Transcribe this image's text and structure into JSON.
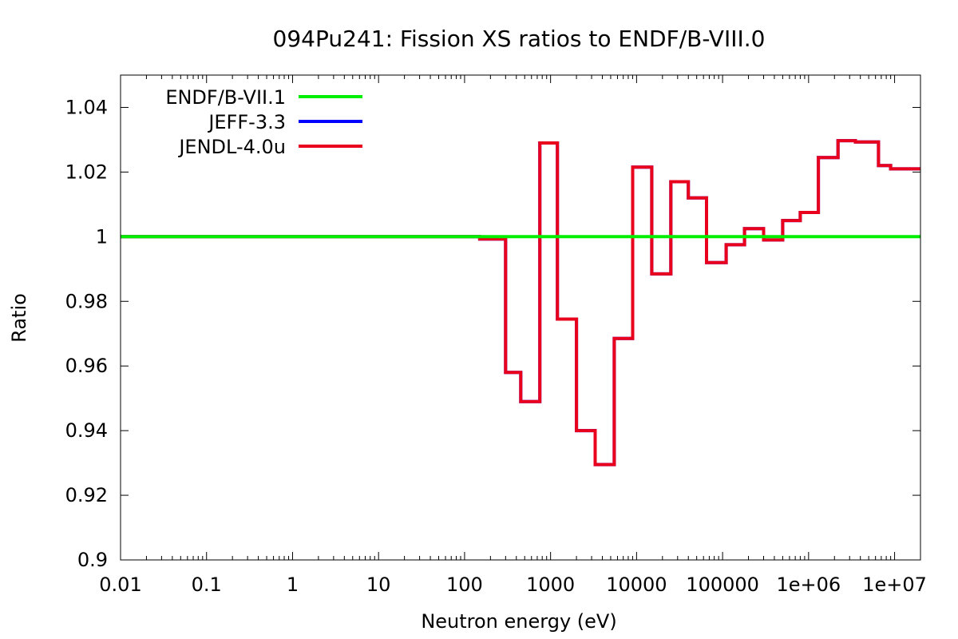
{
  "chart_data": {
    "type": "line",
    "title": "094Pu241: Fission XS ratios to ENDF/B-VIII.0",
    "xlabel": "Neutron energy (eV)",
    "ylabel": "Ratio",
    "xscale": "log",
    "xlim": [
      0.01,
      20000000
    ],
    "ylim": [
      0.9,
      1.05
    ],
    "grid": false,
    "legend_position": "top-left",
    "x_ticks": [
      {
        "value": 0.01,
        "label": "0.01"
      },
      {
        "value": 0.1,
        "label": "0.1"
      },
      {
        "value": 1,
        "label": "1"
      },
      {
        "value": 10,
        "label": "10"
      },
      {
        "value": 100,
        "label": "100"
      },
      {
        "value": 1000,
        "label": "1000"
      },
      {
        "value": 10000,
        "label": "10000"
      },
      {
        "value": 100000,
        "label": "100000"
      },
      {
        "value": 1000000,
        "label": "1e+06"
      },
      {
        "value": 10000000,
        "label": "1e+07"
      }
    ],
    "y_ticks": [
      {
        "value": 0.9,
        "label": "0.9"
      },
      {
        "value": 0.92,
        "label": "0.92"
      },
      {
        "value": 0.94,
        "label": "0.94"
      },
      {
        "value": 0.96,
        "label": "0.96"
      },
      {
        "value": 0.98,
        "label": "0.98"
      },
      {
        "value": 1.0,
        "label": "1"
      },
      {
        "value": 1.02,
        "label": "1.02"
      },
      {
        "value": 1.04,
        "label": "1.04"
      }
    ],
    "series": [
      {
        "name": "ENDF/B-VII.1",
        "color": "#00ee00",
        "style": "line",
        "x": [
          0.01,
          20000000
        ],
        "y": [
          1.0,
          1.0
        ]
      },
      {
        "name": "JEFF-3.3",
        "color": "#0000ff",
        "style": "step",
        "x": [
          0.01,
          150,
          300,
          450,
          750,
          1200,
          2000,
          3300,
          5500,
          9000,
          15000,
          25000,
          40000,
          65000,
          110000,
          180000,
          300000,
          500000,
          800000,
          1300000,
          2200000,
          3500000,
          6500000,
          9000000,
          20000000
        ],
        "y": [
          1.0,
          0.9993,
          0.958,
          0.949,
          1.029,
          0.9745,
          0.94,
          0.9295,
          0.9685,
          1.0215,
          0.9885,
          1.017,
          1.012,
          0.992,
          0.9975,
          1.0025,
          0.999,
          1.005,
          1.0075,
          1.0245,
          1.0297,
          1.0293,
          1.022,
          1.021,
          1.021
        ]
      },
      {
        "name": "JENDL-4.0u",
        "color": "#e8001c",
        "style": "step",
        "x": [
          0.01,
          150,
          300,
          450,
          750,
          1200,
          2000,
          3300,
          5500,
          9000,
          15000,
          25000,
          40000,
          65000,
          110000,
          180000,
          300000,
          500000,
          800000,
          1300000,
          2200000,
          3500000,
          6500000,
          9000000,
          20000000
        ],
        "y": [
          1.0,
          0.9993,
          0.958,
          0.949,
          1.029,
          0.9745,
          0.94,
          0.9295,
          0.9685,
          1.0215,
          0.9885,
          1.017,
          1.012,
          0.992,
          0.9975,
          1.0025,
          0.999,
          1.005,
          1.0075,
          1.0245,
          1.0297,
          1.0293,
          1.022,
          1.021,
          1.021
        ]
      }
    ]
  }
}
